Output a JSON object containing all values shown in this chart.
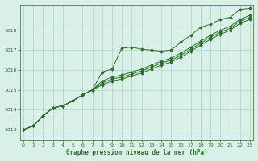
{
  "background_color": "#d8f0e8",
  "plot_bg_color": "#d8f0e8",
  "grid_color": "#b0d4c0",
  "line_color": "#2a6e2a",
  "xlabel": "Graphe pression niveau de la mer (hPa)",
  "ylim": [
    1012.5,
    1019.3
  ],
  "xlim": [
    -0.3,
    23.3
  ],
  "yticks": [
    1013,
    1014,
    1015,
    1016,
    1017,
    1018
  ],
  "xticks": [
    0,
    1,
    2,
    3,
    4,
    5,
    6,
    7,
    8,
    9,
    10,
    11,
    12,
    13,
    14,
    15,
    16,
    17,
    18,
    19,
    20,
    21,
    22,
    23
  ],
  "series1": [
    1013.0,
    1013.2,
    1013.7,
    1014.1,
    1014.2,
    1014.45,
    1014.75,
    1015.0,
    1015.9,
    1016.05,
    1017.1,
    1017.15,
    1017.05,
    1017.0,
    1016.95,
    1017.0,
    1017.4,
    1017.75,
    1018.15,
    1018.3,
    1018.55,
    1018.65,
    1019.05,
    1019.1
  ],
  "series2": [
    1013.0,
    1013.2,
    1013.7,
    1014.1,
    1014.2,
    1014.45,
    1014.75,
    1015.0,
    1015.45,
    1015.65,
    1015.75,
    1015.9,
    1016.05,
    1016.25,
    1016.45,
    1016.6,
    1016.85,
    1017.15,
    1017.45,
    1017.75,
    1018.0,
    1018.2,
    1018.55,
    1018.75
  ],
  "series3": [
    1013.0,
    1013.2,
    1013.7,
    1014.1,
    1014.2,
    1014.45,
    1014.75,
    1015.0,
    1015.35,
    1015.55,
    1015.65,
    1015.8,
    1015.95,
    1016.15,
    1016.35,
    1016.5,
    1016.75,
    1017.05,
    1017.35,
    1017.65,
    1017.9,
    1018.1,
    1018.45,
    1018.65
  ],
  "series4": [
    1013.0,
    1013.2,
    1013.7,
    1014.1,
    1014.2,
    1014.45,
    1014.75,
    1015.0,
    1015.25,
    1015.45,
    1015.55,
    1015.7,
    1015.85,
    1016.05,
    1016.25,
    1016.4,
    1016.65,
    1016.95,
    1017.25,
    1017.55,
    1017.8,
    1018.0,
    1018.35,
    1018.55
  ]
}
